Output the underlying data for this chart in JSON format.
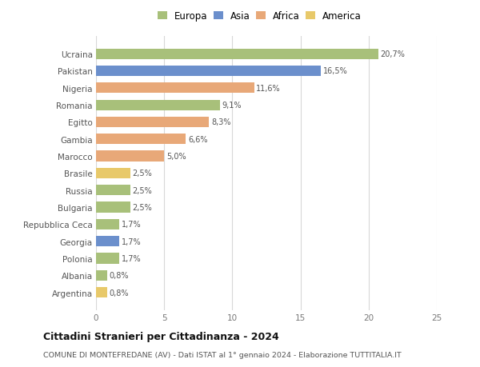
{
  "categories": [
    "Argentina",
    "Albania",
    "Polonia",
    "Georgia",
    "Repubblica Ceca",
    "Bulgaria",
    "Russia",
    "Brasile",
    "Marocco",
    "Gambia",
    "Egitto",
    "Romania",
    "Nigeria",
    "Pakistan",
    "Ucraina"
  ],
  "values": [
    0.8,
    0.8,
    1.7,
    1.7,
    1.7,
    2.5,
    2.5,
    2.5,
    5.0,
    6.6,
    8.3,
    9.1,
    11.6,
    16.5,
    20.7
  ],
  "colors": [
    "#e8c96a",
    "#a8c07a",
    "#a8c07a",
    "#6b8fcc",
    "#a8c07a",
    "#a8c07a",
    "#a8c07a",
    "#e8c96a",
    "#e8a878",
    "#e8a878",
    "#e8a878",
    "#a8c07a",
    "#e8a878",
    "#6b8fcc",
    "#a8c07a"
  ],
  "legend_labels": [
    "Europa",
    "Asia",
    "Africa",
    "America"
  ],
  "legend_colors": [
    "#a8c07a",
    "#6b8fcc",
    "#e8a878",
    "#e8c96a"
  ],
  "title": "Cittadini Stranieri per Cittadinanza - 2024",
  "subtitle": "COMUNE DI MONTEFREDANE (AV) - Dati ISTAT al 1° gennaio 2024 - Elaborazione TUTTITALIA.IT",
  "xlim": [
    0,
    25
  ],
  "xticks": [
    0,
    5,
    10,
    15,
    20,
    25
  ],
  "background_color": "#ffffff",
  "grid_color": "#d8d8d8",
  "bar_height": 0.62
}
